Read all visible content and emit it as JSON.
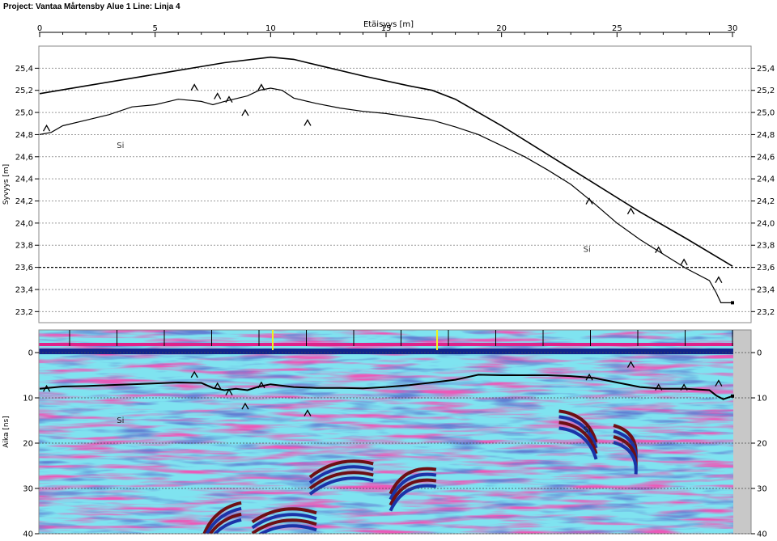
{
  "header": {
    "title": "Project: Vantaa Mårtensby Alue 1  Line: Linja 4"
  },
  "chart_data": [
    {
      "type": "line",
      "panel": "elevation profile",
      "xlabel": "Etäisyys [m]",
      "ylabel": "Syvyys [m]",
      "xlim": [
        0,
        30
      ],
      "ylim": [
        23.1,
        25.6
      ],
      "x_ticks": [
        "0",
        "5",
        "10",
        "15",
        "20",
        "25",
        "30"
      ],
      "y_ticks": [
        "25,4",
        "25,2",
        "25,0",
        "24,8",
        "24,6",
        "24,4",
        "24,2",
        "24,0",
        "23,8",
        "23,6",
        "23,4",
        "23,2"
      ],
      "grid": true,
      "highlighted_level": 23.6,
      "series": [
        {
          "role": "ground surface",
          "x": [
            0,
            2,
            4,
            6,
            8,
            10,
            11,
            12,
            14,
            16,
            17,
            18,
            20,
            22,
            24,
            26,
            28,
            30
          ],
          "y": [
            25.17,
            25.24,
            25.31,
            25.38,
            25.45,
            25.5,
            25.48,
            25.43,
            25.33,
            25.24,
            25.2,
            25.12,
            24.88,
            24.62,
            24.36,
            24.1,
            23.86,
            23.61
          ]
        },
        {
          "role": "interpreted layer boundary",
          "x": [
            0,
            0.5,
            1,
            2,
            3,
            4,
            5,
            6,
            7,
            7.5,
            8,
            9,
            9.5,
            10,
            10.5,
            11,
            12,
            13,
            14,
            15,
            16,
            17,
            18,
            19,
            20,
            21,
            22,
            23,
            24,
            25,
            26,
            27,
            28,
            29,
            29.3,
            29.5,
            30
          ],
          "y": [
            24.8,
            24.82,
            24.88,
            24.93,
            24.98,
            25.05,
            25.07,
            25.12,
            25.1,
            25.07,
            25.1,
            25.15,
            25.2,
            25.22,
            25.2,
            25.13,
            25.08,
            25.04,
            25.01,
            24.99,
            24.96,
            24.93,
            24.87,
            24.8,
            24.7,
            24.6,
            24.48,
            24.35,
            24.18,
            24.0,
            23.85,
            23.72,
            23.59,
            23.48,
            23.37,
            23.28,
            23.28
          ]
        }
      ],
      "markers": [
        {
          "label": "^",
          "x": 0.3,
          "y": 24.86
        },
        {
          "label": "^",
          "x": 6.7,
          "y": 25.23
        },
        {
          "label": "^",
          "x": 7.7,
          "y": 25.15
        },
        {
          "label": "^",
          "x": 8.2,
          "y": 25.12
        },
        {
          "label": "^",
          "x": 8.9,
          "y": 25.0
        },
        {
          "label": "^",
          "x": 9.6,
          "y": 25.23
        },
        {
          "label": "^",
          "x": 11.6,
          "y": 24.91
        },
        {
          "label": "^",
          "x": 23.8,
          "y": 24.2
        },
        {
          "label": "^",
          "x": 25.6,
          "y": 24.11
        },
        {
          "label": "^",
          "x": 26.8,
          "y": 23.76
        },
        {
          "label": "^",
          "x": 27.9,
          "y": 23.65
        },
        {
          "label": "^",
          "x": 29.4,
          "y": 23.49
        }
      ],
      "annotations": [
        {
          "text": "Si",
          "x": 3.5,
          "y": 24.68
        },
        {
          "text": "Si",
          "x": 23.7,
          "y": 23.74
        }
      ]
    },
    {
      "type": "heatmap",
      "panel": "radargram",
      "ylabel": "Aika [ns]",
      "xlim": [
        0,
        30
      ],
      "ylim": [
        40,
        -5
      ],
      "y_ticks": [
        "0",
        "10",
        "20",
        "30",
        "40"
      ],
      "grid": true,
      "colors": {
        "background": "#7fe3f0",
        "positive": "#d4187a",
        "negative": "#1a33a8",
        "strong": "#6e0f14"
      },
      "interpreted_line": {
        "x": [
          0,
          1,
          2,
          3,
          4,
          5,
          6,
          7,
          7.5,
          8,
          8.5,
          9,
          9.5,
          10,
          11,
          12,
          13,
          14,
          15,
          16,
          17,
          18,
          19,
          20,
          21,
          22,
          23,
          24,
          25,
          26,
          27,
          28,
          29,
          29.3,
          29.6,
          30
        ],
        "y": [
          8.0,
          7.5,
          7.4,
          7.2,
          7.0,
          6.8,
          6.6,
          6.7,
          7.8,
          8.3,
          8.0,
          8.3,
          7.5,
          7.0,
          7.6,
          7.8,
          7.8,
          7.9,
          7.6,
          7.2,
          6.6,
          6.0,
          4.9,
          5.0,
          5.0,
          5.0,
          5.2,
          5.6,
          6.6,
          7.6,
          8.0,
          8.0,
          8.3,
          9.5,
          10.3,
          9.6
        ]
      },
      "markers": [
        {
          "label": "^",
          "x": 0.3,
          "y": 7.9
        },
        {
          "label": "^",
          "x": 6.7,
          "y": 4.8
        },
        {
          "label": "^",
          "x": 7.7,
          "y": 7.3
        },
        {
          "label": "^",
          "x": 8.2,
          "y": 8.7
        },
        {
          "label": "^",
          "x": 8.9,
          "y": 11.8
        },
        {
          "label": "^",
          "x": 9.6,
          "y": 7.1
        },
        {
          "label": "^",
          "x": 11.6,
          "y": 13.3
        },
        {
          "label": "^",
          "x": 23.8,
          "y": 5.4
        },
        {
          "label": "^",
          "x": 25.6,
          "y": 2.6
        },
        {
          "label": "^",
          "x": 26.8,
          "y": 7.6
        },
        {
          "label": "^",
          "x": 27.9,
          "y": 7.6
        },
        {
          "label": "^",
          "x": 29.4,
          "y": 6.7
        }
      ],
      "annotations": [
        {
          "text": "Si",
          "x": 3.5,
          "y": 15.5
        },
        {
          "text": "Si",
          "x": 23.7,
          "y": 17.6
        }
      ]
    }
  ]
}
